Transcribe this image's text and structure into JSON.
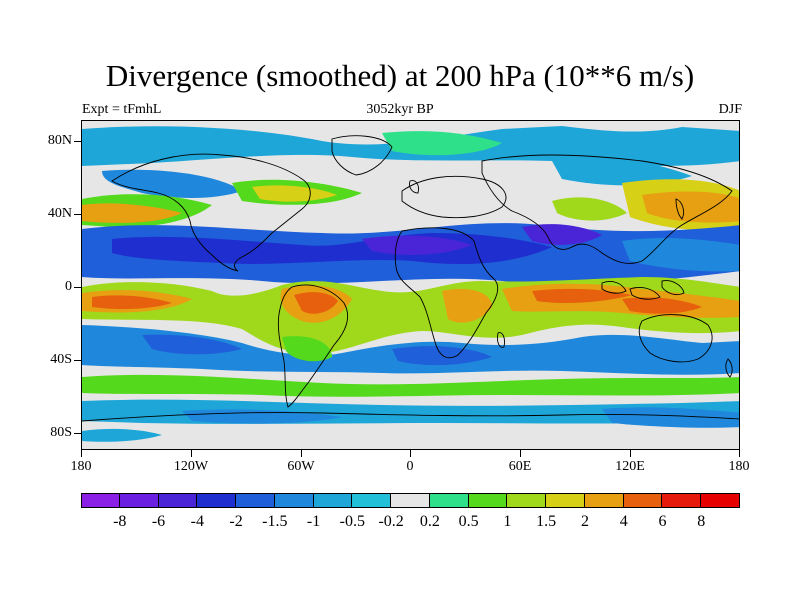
{
  "title": "Divergence (smoothed) at 200 hPa (10**6 m/s)",
  "subtitle_left": "Expt = tFmhL",
  "subtitle_center": "3052kyr BP",
  "subtitle_right": "DJF",
  "y_axis": [
    "80N",
    "40N",
    "0",
    "40S",
    "80S"
  ],
  "x_axis": [
    "180",
    "120W",
    "60W",
    "0",
    "60E",
    "120E",
    "180"
  ],
  "colorbar": {
    "labels": [
      "-8",
      "-6",
      "-4",
      "-2",
      "-1.5",
      "-1",
      "-0.5",
      "-0.2",
      "0.2",
      "0.5",
      "1",
      "1.5",
      "2",
      "4",
      "6",
      "8"
    ],
    "colors": [
      "#8a1fe6",
      "#6b1fe0",
      "#4a25d8",
      "#1f2fcf",
      "#1f5fd9",
      "#1f88dd",
      "#1fa6d8",
      "#22bfd8",
      "#e6e6e6",
      "#2fe08a",
      "#55d91c",
      "#a0d91c",
      "#d6d016",
      "#e6a012",
      "#e6600e",
      "#e61a0c",
      "#e60000"
    ]
  }
}
